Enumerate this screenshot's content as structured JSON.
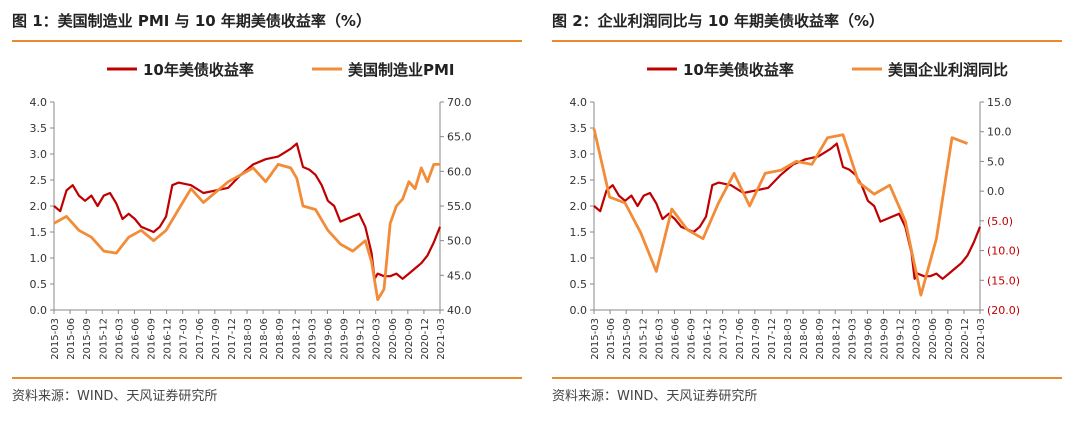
{
  "source_label": "资料来源：WIND、天风证券研究所",
  "colors": {
    "red": "#c00000",
    "orange": "#f28c38",
    "rule": "#e88a2e",
    "neg": "#c00000"
  },
  "chart_data": [
    {
      "type": "line",
      "title": "图 1：美国制造业 PMI 与 10 年期美债收益率（%）",
      "legend": [
        "10年美债收益率",
        "美国制造业PMI"
      ],
      "legend_position": "top",
      "x_ticks": [
        "2015-03",
        "2015-06",
        "2015-09",
        "2015-12",
        "2016-03",
        "2016-06",
        "2016-09",
        "2016-12",
        "2017-03",
        "2017-06",
        "2017-09",
        "2017-12",
        "2018-03",
        "2018-06",
        "2018-09",
        "2018-12",
        "2019-03",
        "2019-06",
        "2019-09",
        "2019-12",
        "2020-03",
        "2020-06",
        "2020-09",
        "2020-12",
        "2021-03"
      ],
      "y_left": {
        "ylim": [
          0,
          4
        ],
        "ticks": [
          "0.0",
          "0.5",
          "1.0",
          "1.5",
          "2.0",
          "2.5",
          "3.0",
          "3.5",
          "4.0"
        ]
      },
      "y_right": {
        "ylim": [
          40,
          70
        ],
        "ticks": [
          "40.0",
          "45.0",
          "50.0",
          "55.0",
          "60.0",
          "65.0",
          "70.0"
        ]
      },
      "series": [
        {
          "name": "10年美债收益率",
          "axis": "left",
          "color": "#c00000",
          "x": [
            2015.0,
            2015.1,
            2015.2,
            2015.3,
            2015.4,
            2015.5,
            2015.6,
            2015.7,
            2015.8,
            2015.9,
            2016.0,
            2016.1,
            2016.2,
            2016.3,
            2016.4,
            2016.5,
            2016.6,
            2016.7,
            2016.8,
            2016.9,
            2017.0,
            2017.2,
            2017.4,
            2017.6,
            2017.8,
            2018.0,
            2018.2,
            2018.4,
            2018.6,
            2018.8,
            2018.9,
            2019.0,
            2019.1,
            2019.2,
            2019.3,
            2019.4,
            2019.5,
            2019.6,
            2019.7,
            2019.8,
            2019.9,
            2020.0,
            2020.1,
            2020.15,
            2020.2,
            2020.3,
            2020.4,
            2020.5,
            2020.6,
            2020.7,
            2020.8,
            2020.9,
            2021.0,
            2021.1,
            2021.2
          ],
          "y": [
            2.0,
            1.9,
            2.3,
            2.4,
            2.2,
            2.1,
            2.2,
            2.0,
            2.2,
            2.25,
            2.05,
            1.75,
            1.85,
            1.75,
            1.6,
            1.55,
            1.5,
            1.6,
            1.8,
            2.4,
            2.45,
            2.4,
            2.25,
            2.3,
            2.35,
            2.6,
            2.8,
            2.9,
            2.95,
            3.1,
            3.2,
            2.75,
            2.7,
            2.6,
            2.4,
            2.1,
            2.0,
            1.7,
            1.75,
            1.8,
            1.85,
            1.6,
            1.1,
            0.6,
            0.7,
            0.65,
            0.65,
            0.7,
            0.6,
            0.7,
            0.8,
            0.9,
            1.05,
            1.3,
            1.6
          ]
        },
        {
          "name": "美国制造业PMI",
          "axis": "right",
          "color": "#f28c38",
          "x": [
            2015.0,
            2015.2,
            2015.4,
            2015.6,
            2015.8,
            2016.0,
            2016.2,
            2016.4,
            2016.6,
            2016.8,
            2017.0,
            2017.2,
            2017.4,
            2017.6,
            2017.8,
            2018.0,
            2018.2,
            2018.4,
            2018.6,
            2018.8,
            2018.9,
            2019.0,
            2019.2,
            2019.4,
            2019.6,
            2019.8,
            2020.0,
            2020.1,
            2020.2,
            2020.3,
            2020.4,
            2020.5,
            2020.6,
            2020.7,
            2020.8,
            2020.9,
            2021.0,
            2021.1,
            2021.2
          ],
          "y": [
            52.5,
            53.5,
            51.5,
            50.5,
            48.5,
            48.2,
            50.5,
            51.5,
            50.0,
            51.5,
            54.5,
            57.5,
            55.5,
            57.0,
            58.5,
            59.5,
            60.5,
            58.5,
            61.0,
            60.5,
            59.0,
            55.0,
            54.5,
            51.5,
            49.5,
            48.5,
            50.0,
            47.0,
            41.5,
            43.0,
            52.5,
            55.0,
            56.0,
            58.5,
            57.5,
            60.5,
            58.5,
            61.0,
            61.0
          ]
        }
      ]
    },
    {
      "type": "line",
      "title": "图 2：企业利润同比与 10 年期美债收益率（%）",
      "legend": [
        "10年美债收益率",
        "美国企业利润同比"
      ],
      "legend_position": "top",
      "x_ticks": [
        "2015-03",
        "2015-06",
        "2015-09",
        "2015-12",
        "2016-03",
        "2016-06",
        "2016-09",
        "2016-12",
        "2017-03",
        "2017-06",
        "2017-09",
        "2017-12",
        "2018-03",
        "2018-06",
        "2018-09",
        "2018-12",
        "2019-03",
        "2019-06",
        "2019-09",
        "2019-12",
        "2020-03",
        "2020-06",
        "2020-09",
        "2020-12",
        "2021-03"
      ],
      "y_left": {
        "ylim": [
          0,
          4
        ],
        "ticks": [
          "0.0",
          "0.5",
          "1.0",
          "1.5",
          "2.0",
          "2.5",
          "3.0",
          "3.5",
          "4.0"
        ]
      },
      "y_right": {
        "ylim": [
          -20,
          15
        ],
        "ticks": [
          "(20.0)",
          "(15.0)",
          "(10.0)",
          "(5.0)",
          "0.0",
          "5.0",
          "10.0",
          "15.0"
        ]
      },
      "series": [
        {
          "name": "10年美债收益率",
          "axis": "left",
          "color": "#c00000",
          "x": [
            2015.0,
            2015.1,
            2015.2,
            2015.3,
            2015.4,
            2015.5,
            2015.6,
            2015.7,
            2015.8,
            2015.9,
            2016.0,
            2016.1,
            2016.2,
            2016.3,
            2016.4,
            2016.5,
            2016.6,
            2016.7,
            2016.8,
            2016.9,
            2017.0,
            2017.2,
            2017.4,
            2017.6,
            2017.8,
            2018.0,
            2018.2,
            2018.4,
            2018.6,
            2018.8,
            2018.9,
            2019.0,
            2019.1,
            2019.2,
            2019.3,
            2019.4,
            2019.5,
            2019.6,
            2019.7,
            2019.8,
            2019.9,
            2020.0,
            2020.1,
            2020.15,
            2020.2,
            2020.3,
            2020.4,
            2020.5,
            2020.6,
            2020.7,
            2020.8,
            2020.9,
            2021.0,
            2021.1,
            2021.2
          ],
          "y": [
            2.0,
            1.9,
            2.3,
            2.4,
            2.2,
            2.1,
            2.2,
            2.0,
            2.2,
            2.25,
            2.05,
            1.75,
            1.85,
            1.75,
            1.6,
            1.55,
            1.5,
            1.6,
            1.8,
            2.4,
            2.45,
            2.4,
            2.25,
            2.3,
            2.35,
            2.6,
            2.8,
            2.9,
            2.95,
            3.1,
            3.2,
            2.75,
            2.7,
            2.6,
            2.4,
            2.1,
            2.0,
            1.7,
            1.75,
            1.8,
            1.85,
            1.6,
            1.1,
            0.6,
            0.7,
            0.65,
            0.65,
            0.7,
            0.6,
            0.7,
            0.8,
            0.9,
            1.05,
            1.3,
            1.6
          ]
        },
        {
          "name": "美国企业利润同比",
          "axis": "right",
          "color": "#f28c38",
          "x": [
            2015.0,
            2015.25,
            2015.5,
            2015.75,
            2016.0,
            2016.25,
            2016.5,
            2016.75,
            2017.0,
            2017.25,
            2017.5,
            2017.75,
            2018.0,
            2018.25,
            2018.5,
            2018.75,
            2019.0,
            2019.25,
            2019.5,
            2019.75,
            2020.0,
            2020.25,
            2020.5,
            2020.75,
            2021.0
          ],
          "y": [
            10.5,
            -1.0,
            -2.0,
            -7.0,
            -13.5,
            -3.0,
            -6.5,
            -8.0,
            -2.0,
            3.0,
            -2.5,
            3.0,
            3.5,
            5.0,
            4.5,
            9.0,
            9.5,
            1.5,
            -0.5,
            1.0,
            -5.0,
            -17.5,
            -8.0,
            9.0,
            8.0
          ]
        }
      ]
    }
  ]
}
